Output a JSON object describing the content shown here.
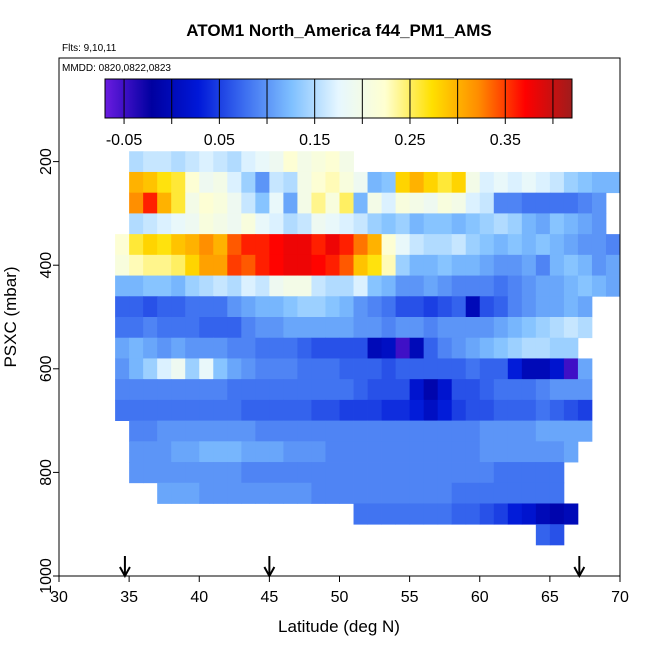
{
  "chart_data": {
    "type": "heatmap",
    "title": "ATOM1 North_America f44_PM1_AMS",
    "flights_label": "Flts: 9,10,11",
    "dates_label": "MMDD: 0820,0822,0823",
    "xlabel": "Latitude (deg N)",
    "ylabel": "PSXC (mbar)",
    "xlim": [
      30,
      70
    ],
    "ylim": [
      1000,
      0
    ],
    "x_ticks": [
      30,
      35,
      40,
      45,
      50,
      55,
      60,
      65,
      70
    ],
    "y_ticks": [
      200,
      400,
      600,
      800,
      1000
    ],
    "colorbar": {
      "range": [
        -0.07,
        0.42
      ],
      "ticks": [
        -0.05,
        0.05,
        0.15,
        0.25,
        0.35
      ],
      "tick_labels": [
        "-0.05",
        "0.05",
        "0.15",
        "0.25",
        "0.35"
      ],
      "gradient": [
        "#6a1be0",
        "#0000a0",
        "#0018d8",
        "#3d6ff0",
        "#7fc0ff",
        "#e6f7ff",
        "#ffffd0",
        "#ffe000",
        "#ff8c00",
        "#ff0000",
        "#a01c1c"
      ]
    },
    "arrow_latitudes": [
      34.7,
      45,
      67.1
    ],
    "grid": false,
    "cell_width_deg": 1,
    "cell_height_mbar": 40,
    "rows": [
      {
        "p": 200,
        "x0": 35,
        "values": [
          0.15,
          0.16,
          0.16,
          0.15,
          0.16,
          0.17,
          0.16,
          0.15,
          0.17,
          0.18,
          0.19,
          0.22,
          0.2,
          0.21,
          0.22,
          0.2
        ]
      },
      {
        "p": 240,
        "x0": 35,
        "values": [
          0.3,
          0.29,
          0.27,
          0.26,
          0.22,
          0.19,
          0.2,
          0.17,
          0.14,
          0.1,
          0.16,
          0.15,
          0.2,
          0.22,
          0.23,
          0.21,
          0.19,
          0.12,
          0.13,
          0.28,
          0.3,
          0.28,
          0.26,
          0.28,
          0.2,
          0.17,
          0.18,
          0.17,
          0.18,
          0.17,
          0.16,
          0.14,
          0.13,
          0.12,
          0.12
        ]
      },
      {
        "p": 280,
        "x0": 35,
        "values": [
          0.32,
          0.36,
          0.3,
          0.26,
          0.2,
          0.22,
          0.21,
          0.19,
          0.16,
          0.13,
          0.18,
          0.11,
          0.2,
          0.24,
          0.21,
          0.25,
          0.12,
          0.2,
          0.17,
          0.21,
          0.2,
          0.19,
          0.21,
          0.2,
          0.17,
          0.16,
          0.09,
          0.09,
          0.08,
          0.08,
          0.08,
          0.08,
          0.09,
          0.1
        ]
      },
      {
        "p": 320,
        "x0": 35,
        "values": [
          0.15,
          0.16,
          0.17,
          0.18,
          0.19,
          0.21,
          0.2,
          0.19,
          0.21,
          0.18,
          0.17,
          0.15,
          0.16,
          0.19,
          0.18,
          0.17,
          0.16,
          0.14,
          0.13,
          0.14,
          0.12,
          0.13,
          0.13,
          0.12,
          0.13,
          0.14,
          0.15,
          0.14,
          0.12,
          0.11,
          0.13,
          0.12,
          0.11,
          0.1
        ]
      },
      {
        "p": 360,
        "x0": 34,
        "values": [
          0.22,
          0.26,
          0.28,
          0.27,
          0.29,
          0.3,
          0.32,
          0.3,
          0.34,
          0.36,
          0.36,
          0.37,
          0.38,
          0.38,
          0.36,
          0.38,
          0.36,
          0.33,
          0.3,
          0.22,
          0.18,
          0.16,
          0.15,
          0.15,
          0.16,
          0.14,
          0.13,
          0.12,
          0.13,
          0.12,
          0.13,
          0.12,
          0.11,
          0.1,
          0.1,
          0.09
        ]
      },
      {
        "p": 400,
        "x0": 34,
        "values": [
          0.21,
          0.23,
          0.24,
          0.24,
          0.25,
          0.28,
          0.31,
          0.31,
          0.35,
          0.34,
          0.36,
          0.37,
          0.38,
          0.38,
          0.37,
          0.36,
          0.34,
          0.29,
          0.27,
          0.23,
          0.14,
          0.12,
          0.12,
          0.13,
          0.12,
          0.12,
          0.11,
          0.1,
          0.1,
          0.11,
          0.09,
          0.12,
          0.13,
          0.12,
          0.1,
          0.11
        ]
      },
      {
        "p": 440,
        "x0": 34,
        "values": [
          0.12,
          0.12,
          0.13,
          0.13,
          0.12,
          0.14,
          0.15,
          0.16,
          0.15,
          0.17,
          0.16,
          0.19,
          0.2,
          0.2,
          0.16,
          0.15,
          0.15,
          0.17,
          0.13,
          0.12,
          0.1,
          0.1,
          0.11,
          0.1,
          0.09,
          0.09,
          0.09,
          0.08,
          0.09,
          0.1,
          0.11,
          0.11,
          0.12,
          0.13,
          0.12,
          0.11
        ]
      },
      {
        "p": 480,
        "x0": 34,
        "values": [
          0.07,
          0.07,
          0.06,
          0.07,
          0.07,
          0.08,
          0.08,
          0.08,
          0.1,
          0.11,
          0.12,
          0.12,
          0.13,
          0.14,
          0.14,
          0.13,
          0.12,
          0.1,
          0.09,
          0.08,
          0.06,
          0.06,
          0.05,
          0.06,
          0.07,
          0.0,
          0.06,
          0.07,
          0.09,
          0.1,
          0.11,
          0.11,
          0.12,
          0.11
        ]
      },
      {
        "p": 520,
        "x0": 34,
        "values": [
          0.08,
          0.08,
          0.09,
          0.08,
          0.08,
          0.08,
          0.07,
          0.07,
          0.07,
          0.09,
          0.1,
          0.1,
          0.11,
          0.11,
          0.11,
          0.11,
          0.11,
          0.1,
          0.1,
          0.09,
          0.1,
          0.1,
          0.09,
          0.1,
          0.1,
          0.1,
          0.1,
          0.11,
          0.12,
          0.13,
          0.14,
          0.15,
          0.16,
          0.15
        ]
      },
      {
        "p": 560,
        "x0": 34,
        "values": [
          0.11,
          0.12,
          0.11,
          0.1,
          0.11,
          0.1,
          0.1,
          0.1,
          0.09,
          0.09,
          0.08,
          0.08,
          0.08,
          0.07,
          0.06,
          0.06,
          0.06,
          0.06,
          0.0,
          0.01,
          -0.05,
          0.0,
          0.07,
          0.09,
          0.1,
          0.11,
          0.12,
          0.13,
          0.14,
          0.15,
          0.15,
          0.14,
          0.14
        ]
      },
      {
        "p": 600,
        "x0": 34,
        "values": [
          0.1,
          0.12,
          0.14,
          0.17,
          0.19,
          0.14,
          0.18,
          0.13,
          0.11,
          0.1,
          0.09,
          0.09,
          0.09,
          0.08,
          0.08,
          0.08,
          0.07,
          0.07,
          0.07,
          0.06,
          0.07,
          0.07,
          0.07,
          0.07,
          0.07,
          0.08,
          0.07,
          0.07,
          0.03,
          0.0,
          0.0,
          0.02,
          -0.05,
          0.11
        ]
      },
      {
        "p": 640,
        "x0": 34,
        "values": [
          0.09,
          0.09,
          0.09,
          0.09,
          0.09,
          0.09,
          0.09,
          0.09,
          0.08,
          0.08,
          0.08,
          0.08,
          0.08,
          0.08,
          0.08,
          0.08,
          0.08,
          0.07,
          0.06,
          0.06,
          0.06,
          0.02,
          -0.01,
          0.02,
          0.06,
          0.06,
          0.07,
          0.08,
          0.08,
          0.08,
          0.09,
          0.1,
          0.1,
          0.1
        ]
      },
      {
        "p": 680,
        "x0": 34,
        "values": [
          0.08,
          0.08,
          0.08,
          0.08,
          0.08,
          0.08,
          0.08,
          0.08,
          0.08,
          0.07,
          0.07,
          0.07,
          0.07,
          0.07,
          0.06,
          0.06,
          0.05,
          0.05,
          0.05,
          0.04,
          0.04,
          0.03,
          0.01,
          0.03,
          0.05,
          0.06,
          0.06,
          0.07,
          0.07,
          0.07,
          0.08,
          0.07,
          0.06,
          0.05
        ]
      },
      {
        "p": 720,
        "x0": 35,
        "values": [
          0.09,
          0.09,
          0.1,
          0.1,
          0.1,
          0.1,
          0.1,
          0.1,
          0.1,
          0.09,
          0.09,
          0.09,
          0.09,
          0.09,
          0.09,
          0.09,
          0.09,
          0.09,
          0.09,
          0.09,
          0.09,
          0.09,
          0.09,
          0.09,
          0.09,
          0.1,
          0.1,
          0.1,
          0.1,
          0.11,
          0.11,
          0.11,
          0.11
        ]
      },
      {
        "p": 760,
        "x0": 35,
        "values": [
          0.1,
          0.1,
          0.1,
          0.11,
          0.11,
          0.12,
          0.12,
          0.12,
          0.11,
          0.11,
          0.11,
          0.1,
          0.1,
          0.1,
          0.09,
          0.09,
          0.09,
          0.09,
          0.09,
          0.09,
          0.09,
          0.09,
          0.09,
          0.09,
          0.09,
          0.1,
          0.1,
          0.1,
          0.1,
          0.1,
          0.1,
          0.11
        ]
      },
      {
        "p": 800,
        "x0": 35,
        "values": [
          0.1,
          0.1,
          0.1,
          0.1,
          0.1,
          0.1,
          0.1,
          0.1,
          0.09,
          0.09,
          0.09,
          0.09,
          0.09,
          0.09,
          0.09,
          0.09,
          0.09,
          0.09,
          0.09,
          0.09,
          0.09,
          0.09,
          0.09,
          0.09,
          0.09,
          0.09,
          0.08,
          0.08,
          0.08,
          0.08,
          0.08
        ]
      },
      {
        "p": 840,
        "x0": 37,
        "values": [
          0.11,
          0.11,
          0.11,
          0.1,
          0.1,
          0.1,
          0.1,
          0.1,
          0.1,
          0.1,
          0.1,
          0.09,
          0.09,
          0.09,
          0.09,
          0.09,
          0.09,
          0.09,
          0.09,
          0.09,
          0.09,
          0.08,
          0.08,
          0.08,
          0.08,
          0.08,
          0.08,
          0.08,
          0.08
        ]
      },
      {
        "p": 880,
        "x0": 51,
        "values": [
          0.08,
          0.08,
          0.08,
          0.08,
          0.08,
          0.08,
          0.08,
          0.07,
          0.07,
          0.06,
          0.05,
          0.03,
          0.02,
          0.0,
          -0.01,
          0.0
        ]
      },
      {
        "p": 920,
        "x0": 64,
        "values": [
          0.07,
          0.06
        ]
      }
    ]
  }
}
